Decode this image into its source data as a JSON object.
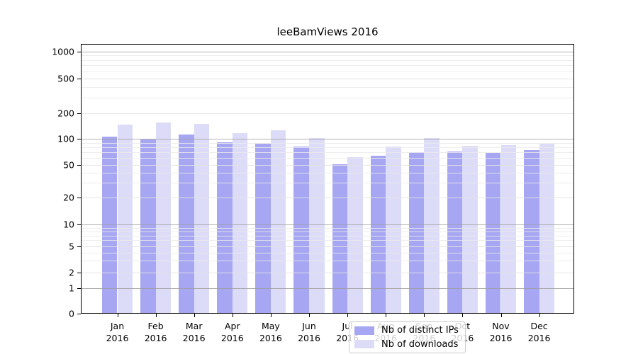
{
  "chart_data": {
    "type": "bar",
    "title": "leeBamViews 2016",
    "categories": [
      "Jan",
      "Feb",
      "Mar",
      "Apr",
      "May",
      "Jun",
      "Jul",
      "Aug",
      "Sep",
      "Oct",
      "Nov",
      "Dec"
    ],
    "category_year": "2016",
    "series": [
      {
        "name": "Nb of distinct IPs",
        "color": "#a6a6f2",
        "values": [
          107,
          98,
          112,
          91,
          87,
          82,
          51,
          64,
          70,
          72,
          69,
          74
        ]
      },
      {
        "name": "Nb of downloads",
        "color": "#dcdcf8",
        "values": [
          148,
          156,
          151,
          116,
          127,
          101,
          62,
          82,
          102,
          83,
          85,
          87
        ]
      }
    ],
    "xlabel": "",
    "ylabel": "",
    "y_axis": {
      "scale": "symlog",
      "tick_labels": [
        "0",
        "1",
        "2",
        "5",
        "10",
        "20",
        "50",
        "100",
        "200",
        "500",
        "1000"
      ],
      "ticks": [
        0,
        1,
        2,
        5,
        10,
        20,
        50,
        100,
        200,
        500,
        1000
      ],
      "decade_gridlines": [
        1,
        10,
        100,
        1000
      ],
      "minor_gridlines": [
        3,
        4,
        6,
        7,
        8,
        9,
        30,
        40,
        60,
        70,
        80,
        90,
        300,
        400,
        600,
        700,
        800,
        900
      ],
      "range_top": 1500
    },
    "grid": "on",
    "legend_position": "bottom-center"
  }
}
